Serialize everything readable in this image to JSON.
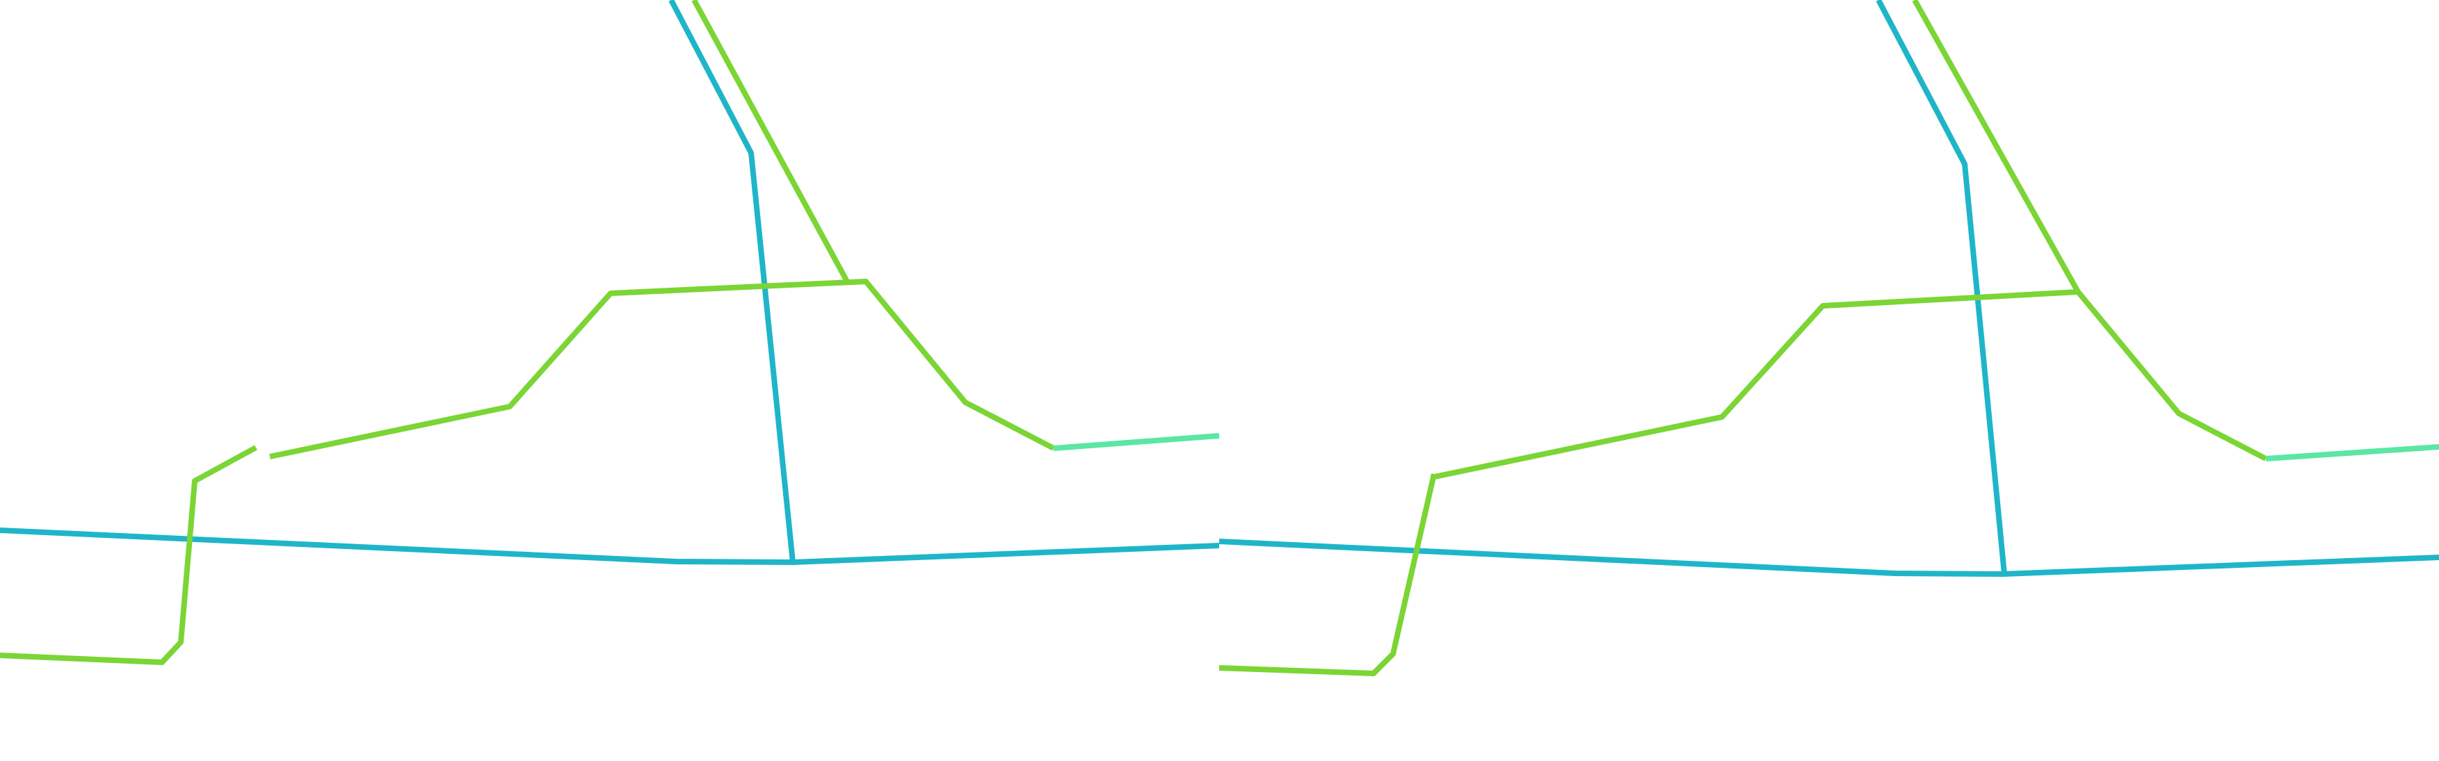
{
  "map": {
    "background": "#ffffff",
    "panels": [
      {
        "name": "left-map-panel"
      },
      {
        "name": "right-map-panel"
      }
    ],
    "route_colors": {
      "blue": "#1fb5c9",
      "green": "#7bd534",
      "teal": "#5ce6a3"
    }
  }
}
